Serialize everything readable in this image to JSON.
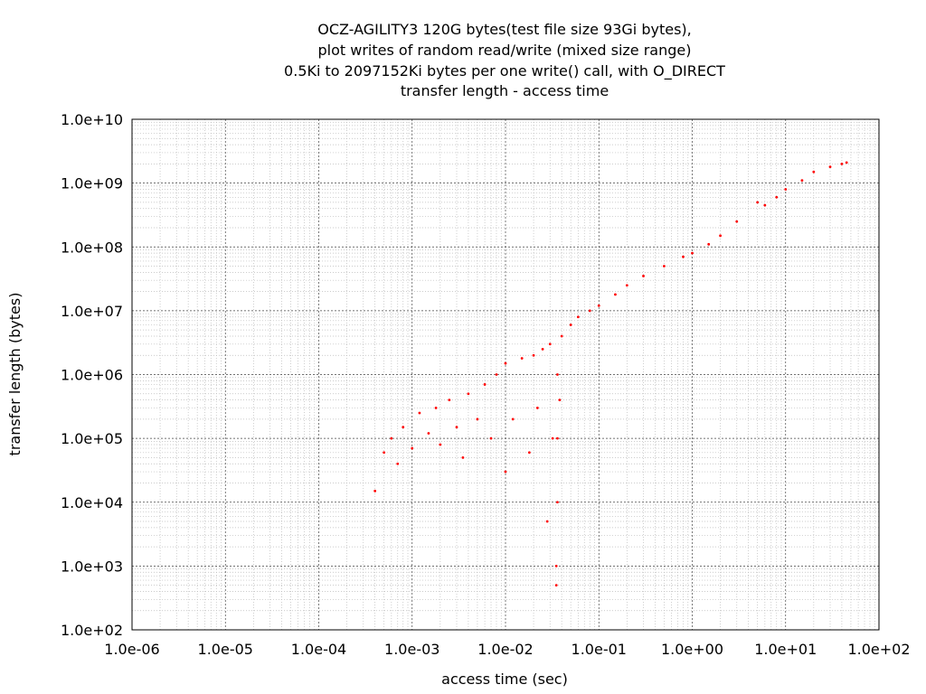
{
  "chart_data": {
    "type": "scatter",
    "title_lines": [
      "OCZ-AGILITY3 120G bytes(test file size 93Gi bytes),",
      "plot writes of random read/write (mixed size range)",
      "0.5Ki to 2097152Ki bytes per one write() call, with O_DIRECT",
      "transfer length - access time"
    ],
    "xlabel": "access time (sec)",
    "ylabel": "transfer length (bytes)",
    "x_scale": "log",
    "y_scale": "log",
    "xlim": [
      1e-06,
      100
    ],
    "ylim": [
      100,
      10000000000
    ],
    "x_ticks": [
      1e-06,
      1e-05,
      0.0001,
      0.001,
      0.01,
      0.1,
      1,
      10,
      100
    ],
    "x_tick_labels": [
      "1.0e-06",
      "1.0e-05",
      "1.0e-04",
      "1.0e-03",
      "1.0e-02",
      "1.0e-01",
      "1.0e+00",
      "1.0e+01",
      "1.0e+02"
    ],
    "y_ticks": [
      100,
      1000,
      10000,
      100000,
      1000000,
      10000000,
      100000000,
      1000000000,
      10000000000
    ],
    "y_tick_labels": [
      "1.0e+02",
      "1.0e+03",
      "1.0e+04",
      "1.0e+05",
      "1.0e+06",
      "1.0e+07",
      "1.0e+08",
      "1.0e+09",
      "1.0e+10"
    ],
    "grid": true,
    "minor_grid": true,
    "point_color": "#ff0000",
    "series": [
      {
        "points": [
          [
            0.0004,
            15000
          ],
          [
            0.0005,
            60000
          ],
          [
            0.0006,
            100000
          ],
          [
            0.0007,
            40000
          ],
          [
            0.0008,
            150000
          ],
          [
            0.001,
            70000
          ],
          [
            0.0012,
            250000
          ],
          [
            0.0015,
            120000
          ],
          [
            0.0018,
            300000
          ],
          [
            0.002,
            80000
          ],
          [
            0.0025,
            400000
          ],
          [
            0.003,
            150000
          ],
          [
            0.0035,
            50000
          ],
          [
            0.004,
            500000
          ],
          [
            0.005,
            200000
          ],
          [
            0.006,
            700000
          ],
          [
            0.007,
            100000
          ],
          [
            0.008,
            1000000
          ],
          [
            0.01,
            30000
          ],
          [
            0.01,
            1500000
          ],
          [
            0.012,
            200000
          ],
          [
            0.015,
            1800000
          ],
          [
            0.018,
            60000
          ],
          [
            0.02,
            2000000
          ],
          [
            0.022,
            300000
          ],
          [
            0.025,
            2500000
          ],
          [
            0.028,
            5000
          ],
          [
            0.03,
            3000000
          ],
          [
            0.032,
            100000
          ],
          [
            0.035,
            1000
          ],
          [
            0.035,
            500
          ],
          [
            0.036,
            10000
          ],
          [
            0.036,
            100000
          ],
          [
            0.036,
            1000000
          ],
          [
            0.038,
            400000
          ],
          [
            0.04,
            4000000
          ],
          [
            0.05,
            6000000
          ],
          [
            0.06,
            8000000
          ],
          [
            0.08,
            10000000
          ],
          [
            0.1,
            12000000
          ],
          [
            0.15,
            18000000
          ],
          [
            0.2,
            25000000
          ],
          [
            0.3,
            35000000
          ],
          [
            0.5,
            50000000
          ],
          [
            0.8,
            70000000
          ],
          [
            1.0,
            80000000
          ],
          [
            1.5,
            110000000
          ],
          [
            2.0,
            150000000
          ],
          [
            3.0,
            250000000
          ],
          [
            5.0,
            500000000
          ],
          [
            6.0,
            450000000
          ],
          [
            8.0,
            600000000
          ],
          [
            10.0,
            800000000
          ],
          [
            15.0,
            1100000000
          ],
          [
            20.0,
            1500000000
          ],
          [
            30.0,
            1800000000
          ],
          [
            40.0,
            2000000000
          ],
          [
            45.0,
            2100000000
          ]
        ]
      }
    ]
  }
}
